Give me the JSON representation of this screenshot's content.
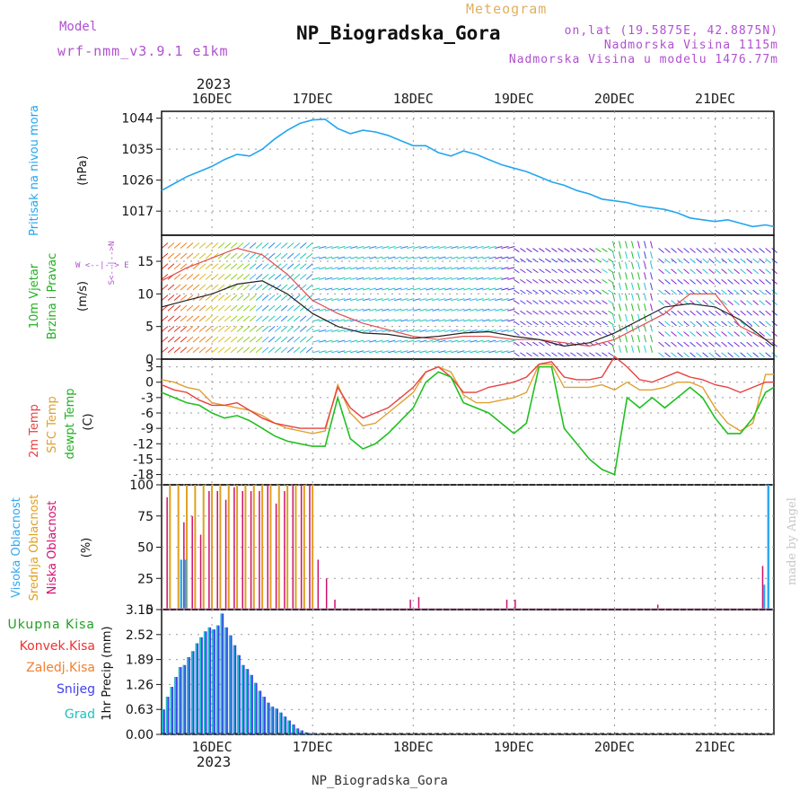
{
  "header": {
    "model_label": "Model",
    "model_name": "wrf-nmm_v3.9.1 e1km",
    "product": "Meteogram",
    "title": "NP_Biogradska_Gora",
    "lonlat": "on,lat (19.5875E, 42.8875N)",
    "elevation": "Nadmorska Visina 1115m",
    "model_elevation": "Nadmorska Visina u modelu 1476.77m",
    "footer_station": "NP_Biogradska_Gora",
    "credit": "made by Angel",
    "year": "2023"
  },
  "colors": {
    "pressure": "#22a6f0",
    "temp2m": "#e84040",
    "sfc": "#e0a030",
    "dewpt": "#20c020",
    "high": "#30a8f0",
    "mid": "#e0a020",
    "low": "#d01070",
    "total_precip": "#20a020",
    "conv": "#f03030",
    "ice": "#f08030",
    "snow": "#4040f0",
    "grad": "#20c0c0",
    "model_text": "#b050d0"
  },
  "chart_data": [
    {
      "type": "line",
      "id": "pressure",
      "ylabel_main": "Pritisak na nivou mora",
      "ylabel_unit": "(hPa)",
      "x_labels": [
        "16DEC",
        "17DEC",
        "18DEC",
        "19DEC",
        "20DEC",
        "21DEC"
      ],
      "yticks": [
        1017,
        1026,
        1035,
        1044
      ],
      "ylim": [
        1010,
        1046
      ],
      "x_hours": [
        0,
        3,
        6,
        9,
        12,
        15,
        18,
        21,
        24,
        27,
        30,
        33,
        36,
        39,
        42,
        45,
        48,
        51,
        54,
        57,
        60,
        63,
        66,
        69,
        72,
        75,
        78,
        81,
        84,
        87,
        90,
        93,
        96,
        99,
        102,
        105,
        108,
        111,
        114,
        117,
        120,
        123,
        126,
        129,
        132,
        135,
        138,
        141,
        144,
        146
      ],
      "values": [
        1023,
        1025,
        1027,
        1028.5,
        1030,
        1032,
        1033.5,
        1033,
        1035,
        1038,
        1040.5,
        1042.5,
        1043.5,
        1043.7,
        1041,
        1039.5,
        1040.5,
        1040,
        1039,
        1037.5,
        1036,
        1036,
        1034,
        1033,
        1034.5,
        1033.5,
        1032,
        1030.5,
        1029.5,
        1028.5,
        1027,
        1025.5,
        1024.5,
        1023,
        1022,
        1020.5,
        1020,
        1019.5,
        1018.5,
        1018,
        1017.5,
        1016.5,
        1015,
        1014.5,
        1014,
        1014.5,
        1013.5,
        1012.5,
        1013,
        1012.5
      ]
    },
    {
      "type": "line",
      "id": "wind",
      "ylabel_main": "10m Vjetar",
      "ylabel_sub": "Brzina i Pravac",
      "ylabel_unit": "(m/s)",
      "compass": "W <--|--> E",
      "compass_vertical": "S<--|-->N",
      "yticks": [
        0,
        5,
        10,
        15
      ],
      "ylim": [
        0,
        19
      ],
      "x_hours": [
        0,
        6,
        12,
        18,
        24,
        30,
        36,
        42,
        48,
        54,
        60,
        66,
        72,
        78,
        84,
        90,
        96,
        102,
        108,
        114,
        120,
        126,
        132,
        138,
        144,
        146
      ],
      "series": [
        {
          "name": "",
          "values": [
            12,
            14,
            15.5,
            17,
            16,
            13,
            9,
            7,
            5.5,
            4.5,
            3.5,
            3,
            3.5,
            3.5,
            3,
            3,
            2.5,
            2,
            3,
            5,
            7,
            10,
            10,
            5,
            3,
            3
          ]
        },
        {
          "name": "",
          "values": [
            8,
            9,
            10,
            11.5,
            12,
            10,
            7,
            5,
            4,
            3.8,
            3.2,
            3.5,
            4,
            4.2,
            3.5,
            3,
            2,
            2.5,
            4,
            6,
            8,
            8.5,
            8,
            6,
            3,
            2
          ]
        }
      ]
    },
    {
      "type": "line",
      "id": "temperature",
      "ylabel_lines": [
        "2m Temp",
        "SFC Temp",
        "dewpt Temp"
      ],
      "ylabel_unit": "(C)",
      "yticks": [
        3,
        0,
        -3,
        -6,
        -9,
        -12,
        -15,
        -18
      ],
      "ylim": [
        -20,
        4.5
      ],
      "x_hours": [
        0,
        3,
        6,
        9,
        12,
        15,
        18,
        21,
        24,
        27,
        30,
        33,
        36,
        39,
        42,
        45,
        48,
        51,
        54,
        57,
        60,
        63,
        66,
        69,
        72,
        75,
        78,
        81,
        84,
        87,
        90,
        93,
        96,
        99,
        102,
        105,
        108,
        111,
        114,
        117,
        120,
        123,
        126,
        129,
        132,
        135,
        138,
        141,
        144,
        146
      ],
      "series": [
        {
          "name": "2m Temp",
          "values": [
            -0.5,
            -1.5,
            -2,
            -3.5,
            -4.5,
            -4.5,
            -4,
            -5.5,
            -7,
            -8,
            -8.5,
            -9,
            -9,
            -9,
            -1,
            -5,
            -7,
            -6,
            -5,
            -3,
            -1,
            2,
            3,
            1,
            -2,
            -2,
            -1,
            -0.5,
            0,
            1,
            3.5,
            4,
            1,
            0.5,
            0.5,
            1,
            5,
            3,
            0.5,
            0,
            1,
            2,
            1,
            0.5,
            -0.5,
            -1,
            -2,
            -1,
            0,
            0
          ]
        },
        {
          "name": "SFC Temp",
          "values": [
            0.5,
            0,
            -1,
            -1.5,
            -4,
            -4.5,
            -5,
            -5.5,
            -6.5,
            -8,
            -9,
            -9.5,
            -10,
            -9.5,
            -0.5,
            -6,
            -8.5,
            -8,
            -6,
            -4,
            -2,
            2,
            3,
            2,
            -2.5,
            -4,
            -4,
            -3.5,
            -3,
            -2,
            3.5,
            3.5,
            -1,
            -1,
            -1,
            -0.5,
            -1.5,
            0,
            -1.5,
            -1.5,
            -1,
            0,
            0,
            -1,
            -5,
            -8,
            -9.5,
            -8,
            1.5,
            1.5
          ]
        },
        {
          "name": "dewpt Temp",
          "values": [
            -2,
            -3,
            -4,
            -4.5,
            -6,
            -7,
            -6.5,
            -7.5,
            -9,
            -10.5,
            -11.5,
            -12,
            -12.5,
            -12.5,
            -3,
            -11,
            -13,
            -12,
            -10,
            -7.5,
            -5,
            0,
            2,
            1,
            -4,
            -5,
            -6,
            -8,
            -10,
            -8,
            3,
            3,
            -9,
            -12,
            -15,
            -17,
            -18,
            -3,
            -5,
            -3,
            -5,
            -3,
            -1,
            -3,
            -7,
            -10,
            -10,
            -7,
            -2,
            -1
          ]
        }
      ]
    },
    {
      "type": "bar",
      "id": "cloud",
      "ylabel_lines": [
        "Visoka Oblacnost",
        "Srednja Oblacnost",
        "Niska Oblacnost"
      ],
      "ylabel_unit": "(%)",
      "yticks": [
        0,
        25,
        50,
        75,
        100
      ],
      "ylim": [
        0,
        100
      ],
      "mid_hours": [
        2,
        4,
        6,
        8,
        10,
        12,
        14,
        16,
        18,
        20,
        22,
        24,
        26,
        28,
        30,
        32,
        34,
        36
      ],
      "mid_values": [
        100,
        100,
        100,
        100,
        100,
        100,
        100,
        100,
        100,
        100,
        100,
        100,
        100,
        100,
        100,
        100,
        100,
        100
      ],
      "low_hours": [
        1,
        5,
        7,
        9,
        11,
        13,
        15,
        17,
        19,
        21,
        23,
        25,
        27,
        29,
        31,
        33,
        35,
        37,
        39,
        41,
        59,
        61,
        82,
        84,
        118,
        143
      ],
      "low_values": [
        90,
        70,
        75,
        60,
        95,
        95,
        88,
        98,
        95,
        95,
        95,
        100,
        85,
        95,
        100,
        100,
        100,
        40,
        25,
        8,
        8,
        10,
        8,
        8,
        4,
        35
      ],
      "high_hours": [
        5,
        6,
        144,
        145
      ],
      "high_values": [
        40,
        40,
        20,
        100
      ]
    },
    {
      "type": "bar",
      "id": "precip",
      "ylabel_lines": [
        "Ukupna Kisa",
        "Konvek.Kisa",
        "Zaledj.Kisa",
        "Snijeg",
        "Grad"
      ],
      "ylabel_unit": "1hr Precip (mm)",
      "yticks": [
        0,
        0.63,
        1.26,
        1.89,
        2.52,
        3.15
      ],
      "ylim": [
        0,
        3.15
      ],
      "x_hours": [
        0,
        1,
        2,
        3,
        4,
        5,
        6,
        7,
        8,
        9,
        10,
        11,
        12,
        13,
        14,
        15,
        16,
        17,
        18,
        19,
        20,
        21,
        22,
        23,
        24,
        25,
        26,
        27,
        28,
        29,
        30,
        31,
        32,
        33,
        34,
        35,
        36,
        37
      ],
      "values": [
        0.63,
        0.95,
        1.2,
        1.45,
        1.7,
        1.75,
        1.95,
        2.1,
        2.3,
        2.45,
        2.6,
        2.7,
        2.65,
        2.75,
        3.05,
        2.7,
        2.5,
        2.25,
        2.0,
        1.75,
        1.65,
        1.5,
        1.3,
        1.1,
        0.95,
        0.8,
        0.7,
        0.65,
        0.55,
        0.45,
        0.35,
        0.25,
        0.15,
        0.1,
        0.05,
        0.03,
        0.02,
        0.01
      ]
    }
  ]
}
